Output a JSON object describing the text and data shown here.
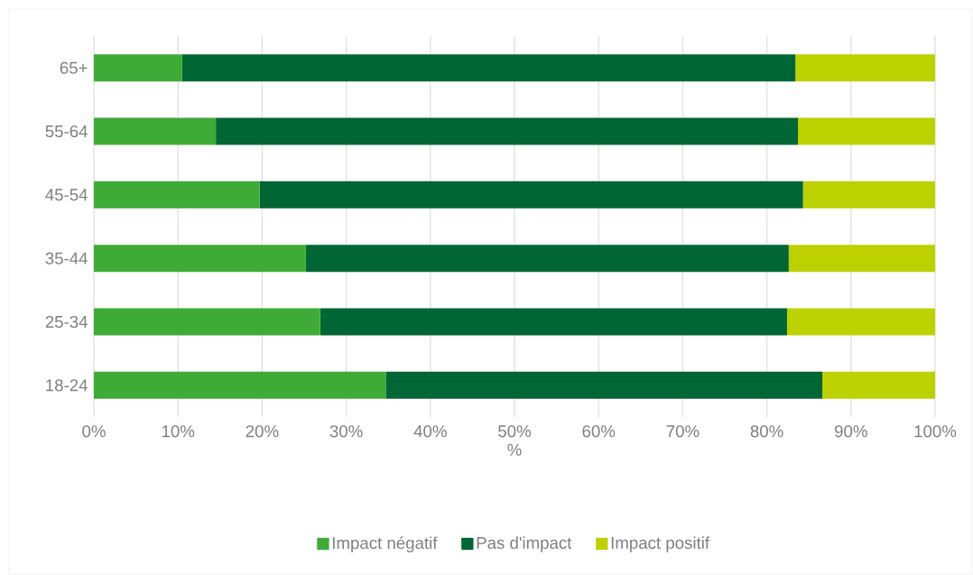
{
  "chart_data": {
    "type": "bar",
    "orientation": "horizontal",
    "stacked": true,
    "categories": [
      "65+",
      "55-64",
      "45-54",
      "35-44",
      "25-34",
      "18-24"
    ],
    "series": [
      {
        "name": "Impact négatif",
        "color": "#3dab35",
        "values": [
          10.5,
          14.5,
          19.7,
          25.2,
          26.9,
          34.7
        ]
      },
      {
        "name": "Pas d'impact",
        "color": "#006634",
        "values": [
          72.9,
          69.2,
          64.6,
          57.4,
          55.5,
          51.9
        ]
      },
      {
        "name": "Impact positif",
        "color": "#bdd100",
        "values": [
          16.6,
          16.3,
          15.7,
          17.4,
          17.6,
          13.4
        ]
      }
    ],
    "xlabel": "%",
    "xlim": [
      0,
      100
    ],
    "xticks": [
      {
        "value": 0,
        "label": "0%"
      },
      {
        "value": 10,
        "label": "10%"
      },
      {
        "value": 20,
        "label": "20%"
      },
      {
        "value": 30,
        "label": "30%"
      },
      {
        "value": 40,
        "label": "40%"
      },
      {
        "value": 50,
        "label": "50%"
      },
      {
        "value": 60,
        "label": "60%"
      },
      {
        "value": 70,
        "label": "70%"
      },
      {
        "value": 80,
        "label": "80%"
      },
      {
        "value": 90,
        "label": "90%"
      },
      {
        "value": 100,
        "label": "100%"
      }
    ],
    "grid": "x",
    "legend": "bottom"
  }
}
